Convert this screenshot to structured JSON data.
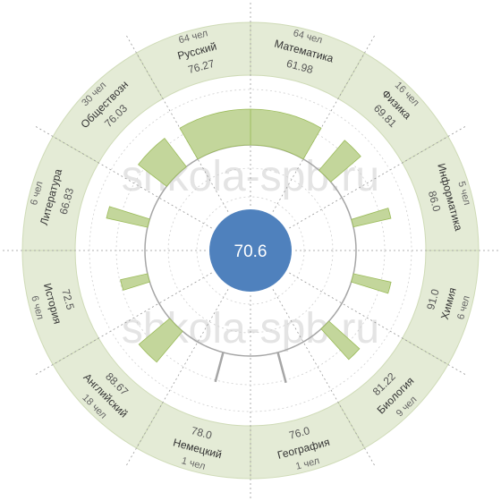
{
  "watermark": "shkola-spb.ru",
  "chart_data": {
    "type": "radial-bar",
    "center_value": "70.6",
    "count_unit": "чел",
    "subjects": [
      {
        "name": "Математика",
        "value": "61.98",
        "count": 64
      },
      {
        "name": "Физика",
        "value": "69.81",
        "count": 16
      },
      {
        "name": "Информатика",
        "value": "86.0",
        "count": 5
      },
      {
        "name": "Химия",
        "value": "91.0",
        "count": 6
      },
      {
        "name": "Биология",
        "value": "81.22",
        "count": 9
      },
      {
        "name": "География",
        "value": "76.0",
        "count": 1
      },
      {
        "name": "Немецкий",
        "value": "78.0",
        "count": 1
      },
      {
        "name": "Английский",
        "value": "88.67",
        "count": 18
      },
      {
        "name": "История",
        "value": "72.5",
        "count": 6
      },
      {
        "name": "Литература",
        "value": "66.83",
        "count": 6
      },
      {
        "name": "Обществозн",
        "value": "76.03",
        "count": 30
      },
      {
        "name": "Русский",
        "value": "76.27",
        "count": 64
      }
    ]
  },
  "colors": {
    "ring_fill": "#e4ebd6",
    "ring_stroke": "#cfdbb7",
    "bar_fill": "#c3d69b",
    "bar_stroke": "#9bbb59",
    "center_fill": "#4f81bd",
    "line": "#a6a6a6",
    "dotted": "#999999"
  }
}
